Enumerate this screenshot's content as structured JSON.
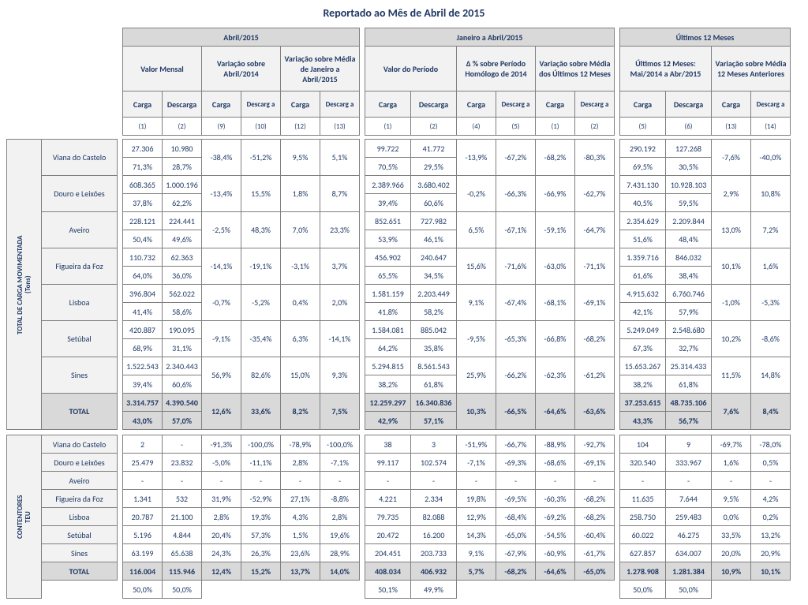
{
  "title": "Reportado ao Mês de Abril de 2015",
  "group_headers": {
    "g1": "Abril/2015",
    "g2": "Janeiro a Abril/2015",
    "g3": "Últimos 12 Meses",
    "g1a": "Valor Mensal",
    "g1b": "Variação sobre\nAbril/2014",
    "g1c": "Variação sobre Média de Janeiro a Abril/2015",
    "g2a": "Valor do Período",
    "g2b": "Δ % sobre Período Homólogo de 2014",
    "g2c": "Variação sobre Média dos Últimos 12 Meses",
    "g3a": "Últimos 12 Meses: Mai/2014 a Abr/2015",
    "g3b": "Variação sobre Média 12 Meses Anteriores",
    "carga": "Carga",
    "descarga": "Descarga",
    "descarg_a": "Descarg\na"
  },
  "col_refs": {
    "a": [
      "(1)",
      "(2)",
      "(9)",
      "(10)",
      "(12)",
      "(13)"
    ],
    "b": [
      "(1)",
      "(2)",
      "(4)",
      "(5)",
      "(1)",
      "(2)"
    ],
    "c": [
      "(5)",
      "(6)",
      "(13)",
      "(14)"
    ]
  },
  "side_labels": {
    "carga": "TOTAL DE CARGA MOVIMENTADA\n(Tons)",
    "teu": "CONTENTORES\nTEU"
  },
  "row_labels": {
    "viana": "Viana do Castelo",
    "douro": "Douro e Leixões",
    "aveiro": "Aveiro",
    "figueira": "Figueira da Foz",
    "lisboa": "Lisboa",
    "setubal": "Setúbal",
    "sines": "Sines",
    "total": "TOTAL"
  },
  "carga": {
    "viana": {
      "a": [
        "27.306",
        "10.980",
        "-38,4%",
        "-51,2%",
        "9,5%",
        "5,1%"
      ],
      "ap": [
        "71,3%",
        "28,7%"
      ],
      "b": [
        "99.722",
        "41.772",
        "-13,9%",
        "-67,2%",
        "-68,2%",
        "-80,3%"
      ],
      "bp": [
        "70,5%",
        "29,5%"
      ],
      "c": [
        "290.192",
        "127.268",
        "-7,6%",
        "-40,0%"
      ],
      "cp": [
        "69,5%",
        "30,5%"
      ]
    },
    "douro": {
      "a": [
        "608.365",
        "1.000.196",
        "-13,4%",
        "15,5%",
        "1,8%",
        "8,7%"
      ],
      "ap": [
        "37,8%",
        "62,2%"
      ],
      "b": [
        "2.389.966",
        "3.680.402",
        "-0,2%",
        "-66,3%",
        "-66,9%",
        "-62,7%"
      ],
      "bp": [
        "39,4%",
        "60,6%"
      ],
      "c": [
        "7.431.130",
        "10.928.103",
        "2,9%",
        "10,8%"
      ],
      "cp": [
        "40,5%",
        "59,5%"
      ]
    },
    "aveiro": {
      "a": [
        "228.121",
        "224.441",
        "-2,5%",
        "48,3%",
        "7,0%",
        "23,3%"
      ],
      "ap": [
        "50,4%",
        "49,6%"
      ],
      "b": [
        "852.651",
        "727.982",
        "6,5%",
        "-67,1%",
        "-59,1%",
        "-64,7%"
      ],
      "bp": [
        "53,9%",
        "46,1%"
      ],
      "c": [
        "2.354.629",
        "2.209.844",
        "13,0%",
        "7,2%"
      ],
      "cp": [
        "51,6%",
        "48,4%"
      ]
    },
    "figueira": {
      "a": [
        "110.732",
        "62.363",
        "-14,1%",
        "-19,1%",
        "-3,1%",
        "3,7%"
      ],
      "ap": [
        "64,0%",
        "36,0%"
      ],
      "b": [
        "456.902",
        "240.647",
        "15,6%",
        "-71,6%",
        "-63,0%",
        "-71,1%"
      ],
      "bp": [
        "65,5%",
        "34,5%"
      ],
      "c": [
        "1.359.716",
        "846.032",
        "10,1%",
        "1,6%"
      ],
      "cp": [
        "61,6%",
        "38,4%"
      ]
    },
    "lisboa": {
      "a": [
        "396.804",
        "562.022",
        "-0,7%",
        "-5,2%",
        "0,4%",
        "2,0%"
      ],
      "ap": [
        "41,4%",
        "58,6%"
      ],
      "b": [
        "1.581.159",
        "2.203.449",
        "9,1%",
        "-67,4%",
        "-68,1%",
        "-69,1%"
      ],
      "bp": [
        "41,8%",
        "58,2%"
      ],
      "c": [
        "4.915.632",
        "6.760.746",
        "-1,0%",
        "-5,3%"
      ],
      "cp": [
        "42,1%",
        "57,9%"
      ]
    },
    "setubal": {
      "a": [
        "420.887",
        "190.095",
        "-9,1%",
        "-35,4%",
        "6,3%",
        "-14,1%"
      ],
      "ap": [
        "68,9%",
        "31,1%"
      ],
      "b": [
        "1.584.081",
        "885.042",
        "-9,5%",
        "-65,3%",
        "-66,8%",
        "-68,2%"
      ],
      "bp": [
        "64,2%",
        "35,8%"
      ],
      "c": [
        "5.249.049",
        "2.548.680",
        "10,2%",
        "-8,6%"
      ],
      "cp": [
        "67,3%",
        "32,7%"
      ]
    },
    "sines": {
      "a": [
        "1.522.543",
        "2.340.443",
        "56,9%",
        "82,6%",
        "15,0%",
        "9,3%"
      ],
      "ap": [
        "39,4%",
        "60,6%"
      ],
      "b": [
        "5.294.815",
        "8.561.543",
        "25,9%",
        "-66,2%",
        "-62,3%",
        "-61,2%"
      ],
      "bp": [
        "38,2%",
        "61,8%"
      ],
      "c": [
        "15.653.267",
        "25.314.433",
        "11,5%",
        "14,8%"
      ],
      "cp": [
        "38,2%",
        "61,8%"
      ]
    },
    "total": {
      "a": [
        "3.314.757",
        "4.390.540",
        "12,6%",
        "33,6%",
        "8,2%",
        "7,5%"
      ],
      "ap": [
        "43,0%",
        "57,0%"
      ],
      "b": [
        "12.259.297",
        "16.340.836",
        "10,3%",
        "-66,5%",
        "-64,6%",
        "-63,6%"
      ],
      "bp": [
        "42,9%",
        "57,1%"
      ],
      "c": [
        "37.253.615",
        "48.735.106",
        "7,6%",
        "8,4%"
      ],
      "cp": [
        "43,3%",
        "56,7%"
      ]
    }
  },
  "teu": {
    "viana": {
      "a": [
        "2",
        "-",
        "-91,3%",
        "-100,0%",
        "-78,9%",
        "-100,0%"
      ],
      "b": [
        "38",
        "3",
        "-51,9%",
        "-66,7%",
        "-88,9%",
        "-92,7%"
      ],
      "c": [
        "104",
        "9",
        "-69,7%",
        "-78,0%"
      ]
    },
    "douro": {
      "a": [
        "25.479",
        "23.832",
        "-5,0%",
        "-11,1%",
        "2,8%",
        "-7,1%"
      ],
      "b": [
        "99.117",
        "102.574",
        "-7,1%",
        "-69,3%",
        "-68,6%",
        "-69,1%"
      ],
      "c": [
        "320.540",
        "333.967",
        "1,6%",
        "0,5%"
      ]
    },
    "aveiro": {
      "a": [
        "-",
        "-",
        "-",
        "-",
        "-",
        "-"
      ],
      "b": [
        "-",
        "-",
        "-",
        "-",
        "-",
        "-"
      ],
      "c": [
        "-",
        "-",
        "-",
        "-"
      ]
    },
    "figueira": {
      "a": [
        "1.341",
        "532",
        "31,9%",
        "-52,9%",
        "27,1%",
        "-8,8%"
      ],
      "b": [
        "4.221",
        "2.334",
        "19,8%",
        "-69,5%",
        "-60,3%",
        "-68,2%"
      ],
      "c": [
        "11.635",
        "7.644",
        "9,5%",
        "4,2%"
      ]
    },
    "lisboa": {
      "a": [
        "20.787",
        "21.100",
        "2,8%",
        "19,3%",
        "4,3%",
        "2,8%"
      ],
      "b": [
        "79.735",
        "82.088",
        "12,9%",
        "-68,4%",
        "-69,2%",
        "-68,2%"
      ],
      "c": [
        "258.750",
        "259.483",
        "0,0%",
        "0,2%"
      ]
    },
    "setubal": {
      "a": [
        "5.196",
        "4.844",
        "20,4%",
        "57,3%",
        "1,5%",
        "19,6%"
      ],
      "b": [
        "20.472",
        "16.200",
        "14,3%",
        "-65,0%",
        "-54,5%",
        "-60,4%"
      ],
      "c": [
        "60.022",
        "46.275",
        "33,5%",
        "13,2%"
      ]
    },
    "sines": {
      "a": [
        "63.199",
        "65.638",
        "24,3%",
        "26,3%",
        "23,6%",
        "28,9%"
      ],
      "b": [
        "204.451",
        "203.733",
        "9,1%",
        "-67,9%",
        "-60,9%",
        "-61,7%"
      ],
      "c": [
        "627.857",
        "634.007",
        "20,0%",
        "20,9%"
      ]
    },
    "total": {
      "a": [
        "116.004",
        "115.946",
        "12,4%",
        "15,2%",
        "13,7%",
        "14,0%"
      ],
      "b": [
        "408.034",
        "406.932",
        "5,7%",
        "-68,2%",
        "-64,6%",
        "-65,0%"
      ],
      "c": [
        "1.278.908",
        "1.281.384",
        "10,9%",
        "10,1%"
      ],
      "p": [
        "50,0%",
        "50,0%",
        "50,1%",
        "49,9%",
        "50,0%",
        "50,0%"
      ]
    }
  }
}
